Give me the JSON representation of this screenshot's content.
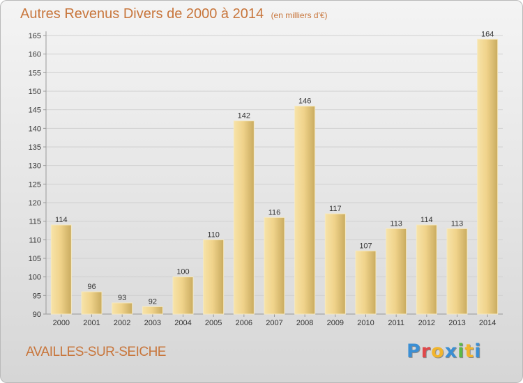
{
  "header": {
    "title": "Autres Revenus Divers de 2000 à 2014",
    "subtitle": "(en milliers d'€)"
  },
  "footer": {
    "commune": "AVAILLES-SUR-SEICHE",
    "logo": "Proxiti",
    "logo_letters": [
      "P",
      "r",
      "o",
      "x",
      "i",
      "t",
      "i"
    ],
    "logo_colors": [
      "#3b8fd4",
      "#e0484a",
      "#f2b52c",
      "#3b8fd4",
      "#5bb947",
      "#f2b52c",
      "#3b8fd4"
    ]
  },
  "colors": {
    "title": "#c8763c",
    "bar_light": "#f7e3a8",
    "bar_dark": "#c9ab5f"
  },
  "chart_data": {
    "type": "bar",
    "title": "Autres Revenus Divers de 2000 à 2014",
    "subtitle": "(en milliers d'€)",
    "categories": [
      "2000",
      "2001",
      "2002",
      "2003",
      "2004",
      "2005",
      "2006",
      "2007",
      "2008",
      "2009",
      "2010",
      "2011",
      "2012",
      "2013",
      "2014"
    ],
    "values": [
      114,
      96,
      93,
      92,
      100,
      110,
      142,
      116,
      146,
      117,
      107,
      113,
      114,
      113,
      164
    ],
    "ylim": [
      90,
      165
    ],
    "yticks": [
      90,
      95,
      100,
      105,
      110,
      115,
      120,
      125,
      130,
      135,
      140,
      145,
      150,
      155,
      160,
      165
    ],
    "grid": true,
    "xlabel": "",
    "ylabel": ""
  }
}
